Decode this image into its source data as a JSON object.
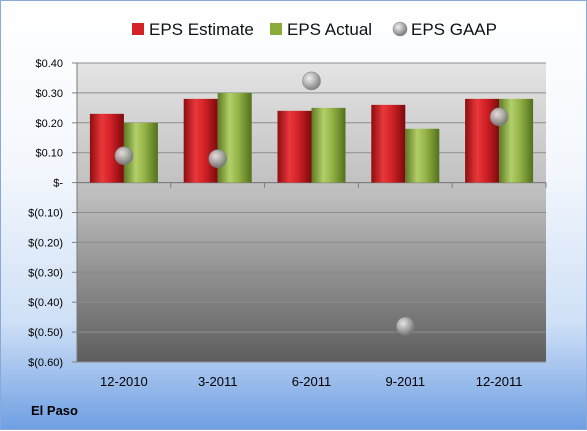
{
  "company": "El Paso",
  "chart_data": {
    "type": "bar",
    "categories": [
      "12-2010",
      "3-2011",
      "6-2011",
      "9-2011",
      "12-2011"
    ],
    "series": [
      {
        "name": "EPS Estimate",
        "type": "bar",
        "color": "#c8181e",
        "values": [
          0.23,
          0.28,
          0.24,
          0.26,
          0.28
        ]
      },
      {
        "name": "EPS Actual",
        "type": "bar",
        "color": "#8aaa3c",
        "values": [
          0.2,
          0.3,
          0.25,
          0.18,
          0.28
        ]
      },
      {
        "name": "EPS GAAP",
        "type": "scatter",
        "color": "#a0a0a0",
        "values": [
          0.09,
          0.08,
          0.34,
          -0.48,
          0.22
        ]
      }
    ],
    "ylim": [
      -0.6,
      0.4
    ],
    "yticks": [
      0.4,
      0.3,
      0.2,
      0.1,
      0,
      -0.1,
      -0.2,
      -0.3,
      -0.4,
      -0.5,
      -0.6
    ],
    "ytick_labels": [
      "$0.40",
      "$0.30",
      "$0.20",
      "$0.10",
      "$-",
      "$(0.10)",
      "$(0.20)",
      "$(0.30)",
      "$(0.40)",
      "$(0.50)",
      "$(0.60)"
    ],
    "grid": true,
    "legend": "top"
  }
}
